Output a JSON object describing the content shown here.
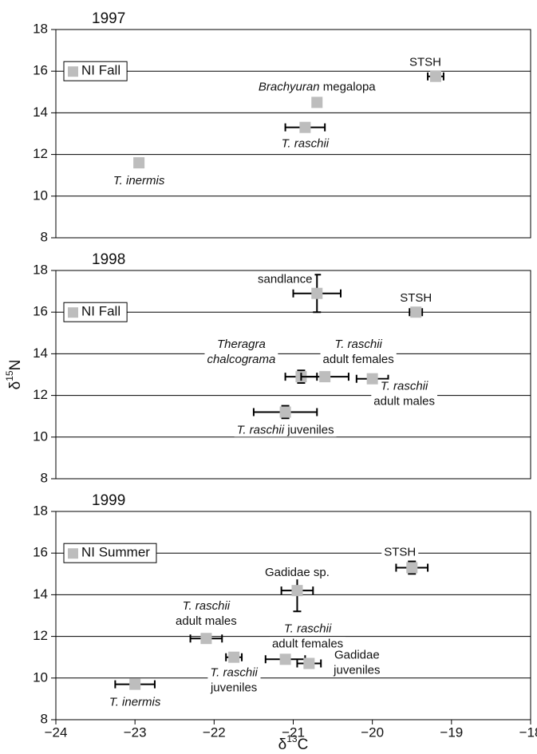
{
  "chart_data": [
    {
      "type": "scatter",
      "title": "1997",
      "legend": "upper left",
      "grid": true,
      "xlim": [
        -24,
        -18
      ],
      "ylim": [
        8,
        18
      ],
      "yticks": [
        8,
        10,
        12,
        14,
        16,
        18
      ],
      "series": [
        {
          "name": "NI Fall",
          "color": "#bdbdbd",
          "x": [
            -22.95,
            -20.85,
            -20.7,
            -19.2
          ],
          "values": [
            11.6,
            13.3,
            14.5,
            15.75
          ],
          "xerr": [
            null,
            0.25,
            null,
            0.1
          ],
          "yerr": [
            null,
            null,
            null,
            0.1
          ],
          "labels": [
            {
              "italic": "T. inermis"
            },
            {
              "italic": "T. raschii"
            },
            {
              "italic": "Brachyuran",
              "roman": "megalopa"
            },
            {
              "roman": "STSH"
            }
          ]
        }
      ]
    },
    {
      "type": "scatter",
      "title": "1998",
      "legend": "upper left",
      "grid": true,
      "xlim": [
        -24,
        -18
      ],
      "ylim": [
        8,
        18
      ],
      "yticks": [
        8,
        10,
        12,
        14,
        16,
        18
      ],
      "y_label": {
        "base": "δ",
        "sup": "15",
        "rest": "N"
      },
      "series": [
        {
          "name": "NI Fall",
          "color": "#bdbdbd",
          "x": [
            -20.7,
            -19.45,
            -20.9,
            -20.6,
            -20.0,
            -21.1
          ],
          "values": [
            16.9,
            16.0,
            12.9,
            12.9,
            12.8,
            11.2
          ],
          "xerr": [
            0.3,
            0.08,
            0.2,
            0.3,
            0.2,
            0.4
          ],
          "yerr": [
            0.9,
            null,
            0.3,
            null,
            null,
            0.3
          ],
          "labels": [
            {
              "roman": "sandlance"
            },
            {
              "roman": "STSH"
            },
            {
              "italic": "Theragra",
              "italic2": "chalcograma"
            },
            {
              "italic": "T. raschii",
              "roman": "adult females"
            },
            {
              "italic": "T. raschii",
              "roman": "adult males"
            },
            {
              "italic": "T. raschii",
              "roman": "juveniles"
            }
          ]
        }
      ]
    },
    {
      "type": "scatter",
      "title": "1999",
      "legend": "upper left",
      "grid": true,
      "xlim": [
        -24,
        -18
      ],
      "ylim": [
        8,
        18
      ],
      "yticks": [
        8,
        10,
        12,
        14,
        16,
        18
      ],
      "xticks": [
        {
          "value": -24,
          "label": "−24"
        },
        {
          "value": -23,
          "label": "−23"
        },
        {
          "value": -22,
          "label": "−22"
        },
        {
          "value": -21,
          "label": "−21"
        },
        {
          "value": -20,
          "label": "−20"
        },
        {
          "value": -19,
          "label": "−19"
        },
        {
          "value": -18,
          "label": "−18"
        }
      ],
      "x_label": {
        "base": "δ",
        "sup": "13",
        "rest": "C"
      },
      "series": [
        {
          "name": "NI Summer",
          "color": "#bdbdbd",
          "x": [
            -19.5,
            -20.95,
            -22.1,
            -21.75,
            -21.1,
            -20.8,
            -23.0
          ],
          "values": [
            15.3,
            14.2,
            11.9,
            11.0,
            10.9,
            10.7,
            9.7
          ],
          "xerr": [
            0.2,
            0.2,
            0.2,
            0.1,
            0.25,
            0.15,
            0.25
          ],
          "yerr": [
            0.3,
            1.0,
            null,
            0.2,
            0.2,
            null,
            0.15
          ],
          "labels": [
            {
              "roman": "STSH"
            },
            {
              "roman": "Gadidae sp."
            },
            {
              "italic": "T. raschii",
              "roman": "adult males"
            },
            {
              "italic": "T. raschii",
              "roman": "juveniles"
            },
            {
              "italic": "T. raschii",
              "roman": "adult females"
            },
            {
              "roman": "Gadidae",
              "roman2": "juveniles"
            },
            {
              "italic": "T. inermis"
            }
          ]
        }
      ]
    }
  ]
}
